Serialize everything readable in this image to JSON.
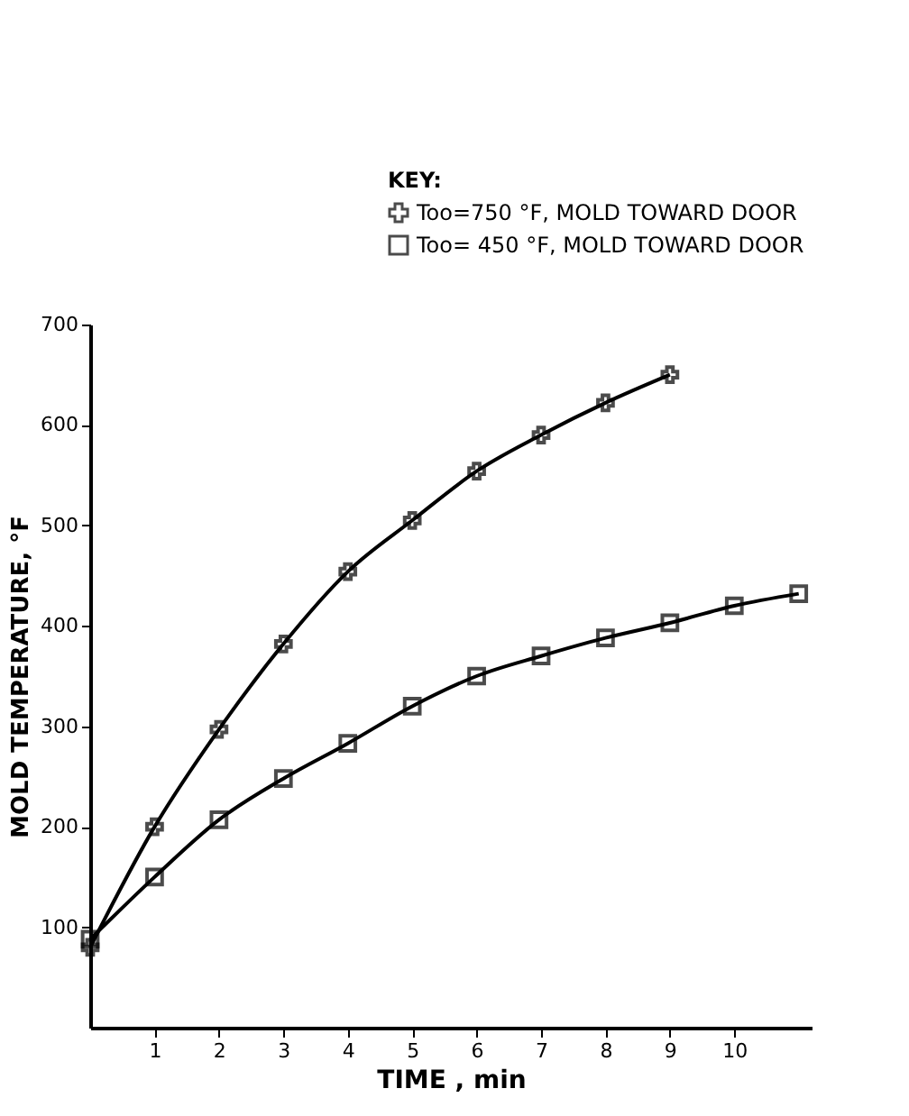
{
  "chart_data": {
    "type": "line",
    "xlabel": "TIME , min",
    "ylabel": "MOLD TEMPERATURE, °F",
    "legend_title": "KEY:",
    "x": [
      0,
      1,
      2,
      3,
      4,
      5,
      6,
      7,
      8,
      9,
      10,
      11
    ],
    "series": [
      {
        "name": "Too=750 °F, MOLD TOWARD DOOR",
        "color": "#000000",
        "marker": "cross",
        "x": [
          0,
          1,
          2,
          3,
          4,
          5,
          6,
          7,
          8,
          9
        ],
        "values": [
          80,
          200,
          297,
          382,
          454,
          505,
          554,
          590,
          622,
          650
        ]
      },
      {
        "name": "Too= 450 °F, MOLD TOWARD DOOR",
        "color": "#000000",
        "marker": "square",
        "values": [
          88,
          150,
          207,
          248,
          283,
          320,
          350,
          370,
          388,
          403,
          420,
          432
        ]
      }
    ],
    "xlim": [
      0,
      11.2
    ],
    "ylim": [
      0,
      700
    ],
    "xticks": [
      1,
      2,
      3,
      4,
      5,
      6,
      7,
      8,
      9,
      10
    ],
    "yticks": [
      100,
      200,
      300,
      400,
      500,
      600,
      700
    ],
    "grid": false,
    "legend": "top right",
    "line_style": "solid"
  }
}
